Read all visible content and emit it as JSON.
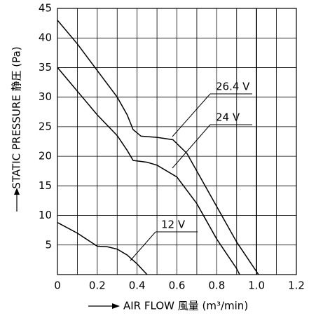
{
  "chart_data": {
    "type": "line",
    "x_label": "AIR FLOW 風量 (m³/min)",
    "y_label": "STATIC PRESSURE 静圧 (Pa)",
    "xlim": [
      0,
      1.2
    ],
    "ylim": [
      0,
      45
    ],
    "xticks": [
      0,
      0.2,
      0.4,
      0.6,
      0.8,
      {
        "value": 1,
        "label": "1.0"
      },
      1.2
    ],
    "xminorticks": [
      0.1,
      0.3,
      0.5,
      0.7,
      0.9,
      1.1
    ],
    "yticks": [
      5,
      10,
      15,
      20,
      25,
      30,
      35,
      40,
      45
    ],
    "grid": true,
    "series": [
      {
        "name": "26.4 V",
        "color": "#000000",
        "x": [
          0,
          0.1,
          0.2,
          0.3,
          0.35,
          0.38,
          0.42,
          0.5,
          0.58,
          0.65,
          0.7,
          0.8,
          0.9,
          0.97,
          1.01
        ],
        "values": [
          43,
          39,
          34.5,
          30,
          27,
          24.5,
          23.4,
          23.2,
          22.8,
          20.5,
          17.5,
          11.5,
          5.5,
          2,
          0
        ]
      },
      {
        "name": "24 V",
        "color": "#000000",
        "x": [
          0,
          0.1,
          0.2,
          0.3,
          0.35,
          0.38,
          0.45,
          0.5,
          0.6,
          0.7,
          0.8,
          0.9,
          0.915
        ],
        "values": [
          35,
          31,
          27,
          23.5,
          21,
          19.3,
          19,
          18.5,
          16.5,
          12,
          6,
          1,
          0
        ]
      },
      {
        "name": "12 V",
        "color": "#000000",
        "x": [
          0,
          0.1,
          0.2,
          0.25,
          0.3,
          0.35,
          0.4,
          0.45
        ],
        "values": [
          8.8,
          7,
          4.8,
          4.7,
          4.3,
          3.3,
          1.8,
          0
        ]
      }
    ]
  }
}
